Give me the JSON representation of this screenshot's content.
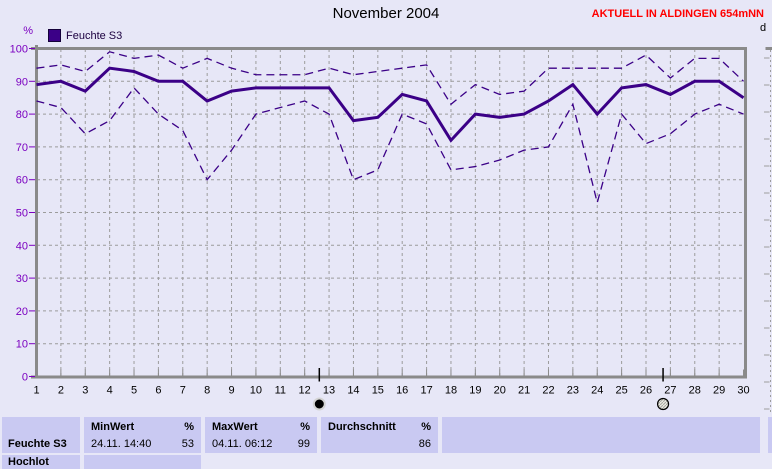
{
  "page": {
    "background": "#E7E7F7"
  },
  "header": {
    "title": "November 2004",
    "station_note": "AKTUELL IN ALDINGEN 654mNN",
    "station_note_color": "#FF0000"
  },
  "legend": {
    "series_label": "Feuchte S3",
    "series_color": "#3B0087"
  },
  "y_axis": {
    "unit": "%",
    "label_color": "#7B00C0"
  },
  "right_edge": {
    "partial_label": "d"
  },
  "chart_data": {
    "type": "line",
    "title": "November 2004",
    "ylabel": "%",
    "ylim": [
      0,
      100
    ],
    "ytick_step": 10,
    "grid": true,
    "color": "#3B0087",
    "x": [
      1,
      2,
      3,
      4,
      5,
      6,
      7,
      8,
      9,
      10,
      11,
      12,
      13,
      14,
      15,
      16,
      17,
      18,
      19,
      20,
      21,
      22,
      23,
      24,
      25,
      26,
      27,
      28,
      29,
      30
    ],
    "series": [
      {
        "name": "max",
        "style": "dashed",
        "values": [
          94,
          95,
          93,
          99,
          97,
          98,
          94,
          97,
          94,
          92,
          92,
          92,
          94,
          92,
          93,
          94,
          95,
          83,
          89,
          86,
          87,
          94,
          94,
          94,
          94,
          98,
          91,
          97,
          97,
          90
        ]
      },
      {
        "name": "mean",
        "style": "solid",
        "values": [
          89,
          90,
          87,
          94,
          93,
          90,
          90,
          84,
          87,
          88,
          88,
          88,
          88,
          78,
          79,
          86,
          84,
          72,
          80,
          79,
          80,
          84,
          89,
          80,
          88,
          89,
          86,
          90,
          90,
          85
        ]
      },
      {
        "name": "min",
        "style": "dashed",
        "values": [
          84,
          82,
          74,
          78,
          88,
          80,
          75,
          60,
          69,
          80,
          82,
          84,
          80,
          60,
          63,
          80,
          77,
          63,
          64,
          66,
          69,
          70,
          83,
          53,
          80,
          71,
          74,
          80,
          83,
          80
        ]
      }
    ],
    "moon_markers": [
      {
        "day": 12.6,
        "phase": "new-moon"
      },
      {
        "day": 26.7,
        "phase": "full-moon"
      }
    ]
  },
  "summary_table": {
    "row_label": "Feuchte S3",
    "row2_label_clipped": "Hochlot",
    "min": {
      "header": "MinWert",
      "unit": "%",
      "timestamp": "24.11. 14:40",
      "value": "53"
    },
    "max": {
      "header": "MaxWert",
      "unit": "%",
      "timestamp": "04.11. 06:12",
      "value": "99"
    },
    "avg": {
      "header": "Durchschnitt",
      "unit": "%",
      "value": "86"
    }
  }
}
